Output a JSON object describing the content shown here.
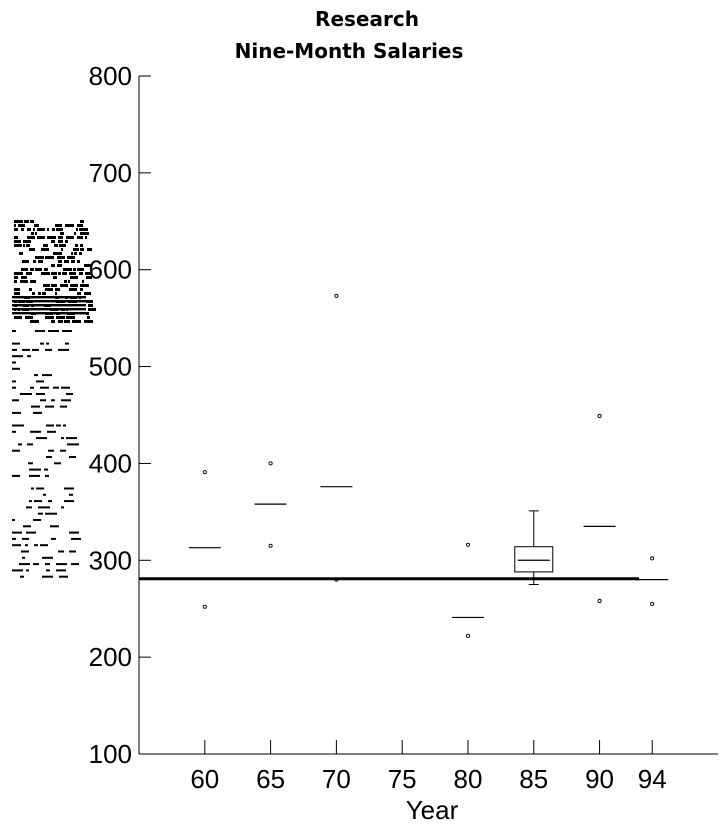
{
  "chart_data": {
    "type": "box",
    "title_lines": [
      "Research",
      "Nine-Month Salaries"
    ],
    "xlabel": "Year",
    "ylabel": "",
    "ylim": [
      100,
      800
    ],
    "yticks": [
      100,
      200,
      300,
      400,
      500,
      600,
      700,
      800
    ],
    "xlim": [
      55,
      99
    ],
    "xticks": [
      60,
      65,
      70,
      75,
      80,
      85,
      90,
      94
    ],
    "grid": false,
    "reference_line": {
      "y": 281,
      "x_from": 55,
      "x_to": 93
    },
    "groups": [
      {
        "x": 60,
        "median": 313,
        "outliers": [
          391,
          252
        ]
      },
      {
        "x": 65,
        "median": 358,
        "outliers": [
          400,
          315
        ]
      },
      {
        "x": 70,
        "median": 376,
        "outliers": [
          573,
          280
        ]
      },
      {
        "x": 80,
        "median": 241,
        "outliers": [
          316,
          222
        ]
      },
      {
        "x": 85,
        "median": 300,
        "q1": 288,
        "q3": 314,
        "whisker_low": 275,
        "whisker_high": 351,
        "outliers": []
      },
      {
        "x": 90,
        "median": 335,
        "outliers": [
          449,
          258
        ]
      },
      {
        "x": 94,
        "median": 280,
        "outliers": [
          302,
          255
        ]
      }
    ]
  }
}
